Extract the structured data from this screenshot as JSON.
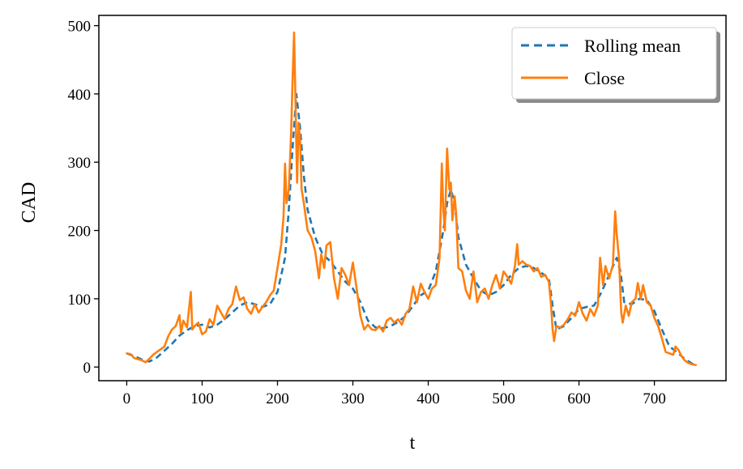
{
  "chart_data": {
    "type": "line",
    "title": "",
    "xlabel": "t",
    "ylabel": "CAD",
    "xlim": [
      -37,
      795
    ],
    "ylim": [
      -20,
      515
    ],
    "xticks": [
      0,
      100,
      200,
      300,
      400,
      500,
      600,
      700
    ],
    "yticks": [
      0,
      100,
      200,
      300,
      400,
      500
    ],
    "xtick_labels": [
      "0",
      "100",
      "200",
      "300",
      "400",
      "500",
      "600",
      "700"
    ],
    "ytick_labels": [
      "0",
      "100",
      "200",
      "300",
      "400",
      "500"
    ],
    "grid": false,
    "legend_position": "top-right",
    "series": [
      {
        "name": "Rolling mean",
        "style": "dashed",
        "color": "#1f77b4",
        "points": [
          [
            0,
            20
          ],
          [
            10,
            16
          ],
          [
            20,
            11
          ],
          [
            30,
            8
          ],
          [
            40,
            14
          ],
          [
            50,
            24
          ],
          [
            60,
            34
          ],
          [
            70,
            46
          ],
          [
            80,
            54
          ],
          [
            90,
            60
          ],
          [
            100,
            62
          ],
          [
            110,
            58
          ],
          [
            120,
            62
          ],
          [
            130,
            70
          ],
          [
            140,
            80
          ],
          [
            150,
            90
          ],
          [
            160,
            95
          ],
          [
            170,
            92
          ],
          [
            180,
            88
          ],
          [
            190,
            92
          ],
          [
            200,
            110
          ],
          [
            210,
            160
          ],
          [
            215,
            230
          ],
          [
            220,
            320
          ],
          [
            225,
            400
          ],
          [
            230,
            350
          ],
          [
            235,
            280
          ],
          [
            240,
            230
          ],
          [
            250,
            190
          ],
          [
            260,
            165
          ],
          [
            270,
            155
          ],
          [
            280,
            140
          ],
          [
            290,
            125
          ],
          [
            300,
            115
          ],
          [
            310,
            95
          ],
          [
            320,
            68
          ],
          [
            330,
            58
          ],
          [
            340,
            57
          ],
          [
            350,
            60
          ],
          [
            360,
            66
          ],
          [
            370,
            75
          ],
          [
            380,
            90
          ],
          [
            390,
            105
          ],
          [
            400,
            112
          ],
          [
            410,
            140
          ],
          [
            420,
            200
          ],
          [
            425,
            240
          ],
          [
            430,
            260
          ],
          [
            435,
            240
          ],
          [
            440,
            190
          ],
          [
            450,
            150
          ],
          [
            460,
            130
          ],
          [
            470,
            112
          ],
          [
            480,
            105
          ],
          [
            490,
            110
          ],
          [
            500,
            120
          ],
          [
            510,
            135
          ],
          [
            520,
            145
          ],
          [
            530,
            148
          ],
          [
            540,
            145
          ],
          [
            550,
            138
          ],
          [
            560,
            130
          ],
          [
            565,
            90
          ],
          [
            570,
            55
          ],
          [
            580,
            60
          ],
          [
            590,
            72
          ],
          [
            600,
            85
          ],
          [
            610,
            88
          ],
          [
            620,
            90
          ],
          [
            630,
            110
          ],
          [
            640,
            135
          ],
          [
            650,
            160
          ],
          [
            655,
            140
          ],
          [
            660,
            95
          ],
          [
            670,
            92
          ],
          [
            680,
            100
          ],
          [
            690,
            98
          ],
          [
            700,
            82
          ],
          [
            710,
            55
          ],
          [
            720,
            30
          ],
          [
            730,
            22
          ],
          [
            740,
            12
          ],
          [
            750,
            5
          ],
          [
            755,
            3
          ]
        ]
      },
      {
        "name": "Close",
        "style": "solid",
        "color": "#ff7f0e",
        "points": [
          [
            0,
            20
          ],
          [
            5,
            19
          ],
          [
            10,
            13
          ],
          [
            20,
            10
          ],
          [
            25,
            7
          ],
          [
            30,
            12
          ],
          [
            35,
            18
          ],
          [
            40,
            22
          ],
          [
            45,
            26
          ],
          [
            50,
            30
          ],
          [
            55,
            45
          ],
          [
            60,
            55
          ],
          [
            65,
            60
          ],
          [
            70,
            76
          ],
          [
            72,
            50
          ],
          [
            75,
            68
          ],
          [
            80,
            58
          ],
          [
            85,
            110
          ],
          [
            87,
            55
          ],
          [
            90,
            60
          ],
          [
            95,
            65
          ],
          [
            100,
            48
          ],
          [
            105,
            52
          ],
          [
            110,
            70
          ],
          [
            115,
            62
          ],
          [
            120,
            90
          ],
          [
            125,
            80
          ],
          [
            130,
            70
          ],
          [
            135,
            85
          ],
          [
            140,
            92
          ],
          [
            145,
            118
          ],
          [
            150,
            98
          ],
          [
            155,
            102
          ],
          [
            160,
            85
          ],
          [
            165,
            78
          ],
          [
            170,
            92
          ],
          [
            175,
            80
          ],
          [
            180,
            88
          ],
          [
            185,
            95
          ],
          [
            190,
            105
          ],
          [
            195,
            112
          ],
          [
            200,
            145
          ],
          [
            205,
            180
          ],
          [
            208,
            220
          ],
          [
            210,
            298
          ],
          [
            212,
            240
          ],
          [
            215,
            260
          ],
          [
            218,
            340
          ],
          [
            220,
            420
          ],
          [
            222,
            490
          ],
          [
            224,
            380
          ],
          [
            226,
            270
          ],
          [
            228,
            358
          ],
          [
            230,
            330
          ],
          [
            232,
            260
          ],
          [
            235,
            240
          ],
          [
            238,
            215
          ],
          [
            240,
            200
          ],
          [
            245,
            190
          ],
          [
            250,
            170
          ],
          [
            255,
            130
          ],
          [
            258,
            165
          ],
          [
            262,
            145
          ],
          [
            265,
            178
          ],
          [
            270,
            183
          ],
          [
            275,
            130
          ],
          [
            280,
            100
          ],
          [
            285,
            145
          ],
          [
            290,
            135
          ],
          [
            295,
            120
          ],
          [
            300,
            153
          ],
          [
            305,
            115
          ],
          [
            310,
            75
          ],
          [
            315,
            55
          ],
          [
            320,
            62
          ],
          [
            325,
            55
          ],
          [
            330,
            54
          ],
          [
            335,
            60
          ],
          [
            340,
            52
          ],
          [
            345,
            68
          ],
          [
            350,
            72
          ],
          [
            355,
            65
          ],
          [
            360,
            70
          ],
          [
            365,
            62
          ],
          [
            370,
            78
          ],
          [
            375,
            85
          ],
          [
            380,
            118
          ],
          [
            385,
            95
          ],
          [
            390,
            122
          ],
          [
            395,
            110
          ],
          [
            400,
            100
          ],
          [
            405,
            115
          ],
          [
            410,
            120
          ],
          [
            415,
            160
          ],
          [
            418,
            298
          ],
          [
            420,
            230
          ],
          [
            422,
            200
          ],
          [
            425,
            320
          ],
          [
            428,
            260
          ],
          [
            430,
            270
          ],
          [
            432,
            215
          ],
          [
            435,
            250
          ],
          [
            437,
            225
          ],
          [
            440,
            145
          ],
          [
            445,
            140
          ],
          [
            450,
            112
          ],
          [
            455,
            100
          ],
          [
            460,
            140
          ],
          [
            465,
            95
          ],
          [
            470,
            110
          ],
          [
            475,
            115
          ],
          [
            480,
            100
          ],
          [
            485,
            120
          ],
          [
            490,
            135
          ],
          [
            495,
            115
          ],
          [
            500,
            140
          ],
          [
            505,
            132
          ],
          [
            510,
            122
          ],
          [
            515,
            148
          ],
          [
            518,
            180
          ],
          [
            520,
            150
          ],
          [
            525,
            155
          ],
          [
            530,
            150
          ],
          [
            535,
            148
          ],
          [
            540,
            140
          ],
          [
            545,
            145
          ],
          [
            550,
            132
          ],
          [
            555,
            135
          ],
          [
            560,
            125
          ],
          [
            563,
            90
          ],
          [
            565,
            55
          ],
          [
            567,
            38
          ],
          [
            570,
            60
          ],
          [
            575,
            58
          ],
          [
            580,
            62
          ],
          [
            585,
            70
          ],
          [
            590,
            80
          ],
          [
            595,
            75
          ],
          [
            600,
            95
          ],
          [
            605,
            78
          ],
          [
            610,
            68
          ],
          [
            615,
            85
          ],
          [
            620,
            75
          ],
          [
            625,
            90
          ],
          [
            628,
            160
          ],
          [
            632,
            120
          ],
          [
            635,
            148
          ],
          [
            640,
            130
          ],
          [
            645,
            150
          ],
          [
            648,
            228
          ],
          [
            650,
            195
          ],
          [
            653,
            160
          ],
          [
            656,
            80
          ],
          [
            658,
            65
          ],
          [
            662,
            90
          ],
          [
            666,
            75
          ],
          [
            670,
            95
          ],
          [
            675,
            100
          ],
          [
            678,
            123
          ],
          [
            682,
            100
          ],
          [
            685,
            120
          ],
          [
            690,
            95
          ],
          [
            695,
            90
          ],
          [
            700,
            72
          ],
          [
            705,
            60
          ],
          [
            710,
            42
          ],
          [
            715,
            22
          ],
          [
            720,
            20
          ],
          [
            725,
            18
          ],
          [
            728,
            30
          ],
          [
            732,
            25
          ],
          [
            736,
            16
          ],
          [
            740,
            10
          ],
          [
            745,
            6
          ],
          [
            750,
            4
          ],
          [
            755,
            3
          ]
        ]
      }
    ]
  }
}
